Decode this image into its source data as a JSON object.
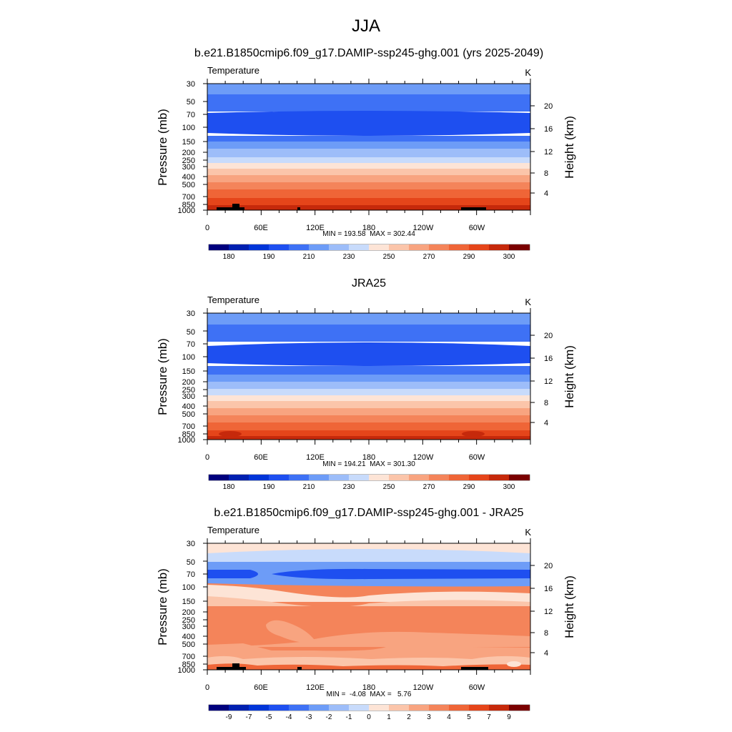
{
  "figure": {
    "title": "JJA",
    "height_axis_label": "Height (km)",
    "height_ticks": [
      "20",
      "16",
      "12",
      "8",
      "4"
    ]
  },
  "chart_data": [
    {
      "type": "heatmap",
      "title": "b.e21.B1850cmip6.f09_g17.DAMIP-ssp245-ghg.001 (yrs 2025-2049)",
      "left_label": "Temperature",
      "units": "K",
      "xlabel": "",
      "ylabel": "Pressure (mb)",
      "x_ticks": [
        "0",
        "60E",
        "120E",
        "180",
        "120W",
        "60W"
      ],
      "y_ticks": [
        "30",
        "50",
        "70",
        "100",
        "150",
        "200",
        "250",
        "300",
        "400",
        "500",
        "700",
        "850",
        "1000"
      ],
      "y_scale": "log",
      "stats": "MIN = 193.58  MAX = 302.44",
      "min": 193.58,
      "max": 302.44,
      "colorbar_labels": [
        "180",
        "190",
        "210",
        "230",
        "250",
        "270",
        "290",
        "300"
      ],
      "pressure_levels": [
        30,
        50,
        70,
        100,
        150,
        200,
        250,
        300,
        400,
        500,
        700,
        850,
        1000
      ],
      "zonal_profile_K": [
        216,
        210,
        203,
        197,
        207,
        218,
        225,
        234,
        248,
        258,
        275,
        285,
        290
      ]
    },
    {
      "type": "heatmap",
      "title": "JRA25",
      "left_label": "Temperature",
      "units": "K",
      "xlabel": "",
      "ylabel": "Pressure (mb)",
      "x_ticks": [
        "0",
        "60E",
        "120E",
        "180",
        "120W",
        "60W"
      ],
      "y_ticks": [
        "30",
        "50",
        "70",
        "100",
        "150",
        "200",
        "250",
        "300",
        "400",
        "500",
        "700",
        "850",
        "1000"
      ],
      "y_scale": "log",
      "stats": "MIN = 194.21  MAX = 301.30",
      "min": 194.21,
      "max": 301.3,
      "colorbar_labels": [
        "180",
        "190",
        "210",
        "230",
        "250",
        "270",
        "290",
        "300"
      ],
      "pressure_levels": [
        30,
        50,
        70,
        100,
        150,
        200,
        250,
        300,
        400,
        500,
        700,
        850,
        1000
      ],
      "zonal_profile_K": [
        214,
        210,
        204,
        198,
        206,
        216,
        224,
        233,
        246,
        256,
        273,
        283,
        288
      ]
    },
    {
      "type": "heatmap",
      "title": "b.e21.B1850cmip6.f09_g17.DAMIP-ssp245-ghg.001 - JRA25",
      "left_label": "Temperature",
      "units": "K",
      "xlabel": "",
      "ylabel": "Pressure (mb)",
      "x_ticks": [
        "0",
        "60E",
        "120E",
        "180",
        "120W",
        "60W"
      ],
      "y_ticks": [
        "30",
        "50",
        "70",
        "100",
        "150",
        "200",
        "250",
        "300",
        "400",
        "500",
        "700",
        "850",
        "1000"
      ],
      "y_scale": "log",
      "stats": "MIN =  -4.08  MAX =   5.76",
      "min": -4.08,
      "max": 5.76,
      "colorbar_labels": [
        "-9",
        "-7",
        "-5",
        "-4",
        "-3",
        "-2",
        "-1",
        "0",
        "1",
        "2",
        "3",
        "4",
        "5",
        "7",
        "9"
      ],
      "pressure_levels": [
        30,
        50,
        70,
        100,
        150,
        200,
        250,
        300,
        400,
        500,
        700,
        850,
        1000
      ],
      "zonal_profile_K": [
        0.5,
        -1.5,
        -3.5,
        0.3,
        4,
        4,
        4,
        4,
        4,
        3.5,
        2.5,
        2,
        3
      ]
    }
  ],
  "colors": {
    "absolute_scale": [
      "#00007d",
      "#0020b0",
      "#0035d8",
      "#1e4ff0",
      "#3e71f5",
      "#6d9cf7",
      "#9dbdf9",
      "#c8dbfb",
      "#e8eefb",
      "#fde4d6",
      "#fbc5aa",
      "#f8a480",
      "#f4845a",
      "#ef6537",
      "#e5451a",
      "#c6290b",
      "#9f1606",
      "#7a0000"
    ],
    "difference_scale": [
      "#00007d",
      "#0020b0",
      "#0035d8",
      "#1e4ff0",
      "#3e71f5",
      "#6d9cf7",
      "#9dbdf9",
      "#c8dbfb",
      "#fde4d6",
      "#fbc5aa",
      "#f8a480",
      "#f4845a",
      "#ef6537",
      "#e5451a",
      "#c6290b",
      "#7a0000"
    ],
    "topography": "#000000"
  }
}
